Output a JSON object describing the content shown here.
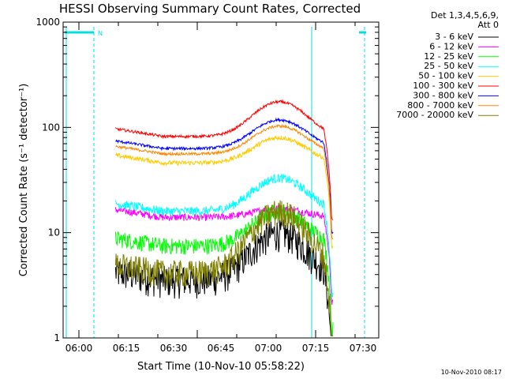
{
  "chart_data": {
    "type": "line",
    "title": "HESSI Observing Summary Count Rates, Corrected",
    "xlabel": "Start Time (10-Nov-10 05:58:22)",
    "ylabel": "Corrected Count Rate (s⁻¹ detector⁻¹)",
    "yscale": "log",
    "ylim": [
      1,
      1000
    ],
    "xlim_minutes": [
      -2,
      38
    ],
    "x_ticks": [
      {
        "label": "06:00",
        "m": 0
      },
      {
        "label": "06:15",
        "m": 15
      },
      {
        "label": "06:30",
        "m": 30
      },
      {
        "label": "06:45",
        "m": 45
      },
      {
        "label": "07:00",
        "m": 60
      },
      {
        "label": "07:15",
        "m": 75
      },
      {
        "label": "07:30",
        "m": 90
      }
    ],
    "y_ticks": [
      {
        "label": "1",
        "v": 1
      },
      {
        "label": "10",
        "v": 10
      },
      {
        "label": "100",
        "v": 100
      },
      {
        "label": "1000",
        "v": 1000
      }
    ],
    "legend_header": [
      "Det 1,3,4,5,6,9,",
      "Att 0"
    ],
    "legend_position": "right",
    "night_flag_label": "N",
    "series": [
      {
        "name": "3 - 6 keV",
        "color": "#000000",
        "base": 3.6,
        "peak": 10,
        "noise": 0.35
      },
      {
        "name": "6 - 12 keV",
        "color": "#ff00ff",
        "base": 14,
        "peak": 17,
        "noise": 0.08
      },
      {
        "name": "12 - 25 keV",
        "color": "#00ff00",
        "base": 7.5,
        "peak": 16,
        "noise": 0.18
      },
      {
        "name": "25 - 50 keV",
        "color": "#00ffff",
        "base": 16,
        "peak": 33,
        "noise": 0.1
      },
      {
        "name": "50 - 100 keV",
        "color": "#ffcc00",
        "base": 46,
        "peak": 80,
        "noise": 0.05
      },
      {
        "name": "100 - 300 keV",
        "color": "#ff0000",
        "base": 82,
        "peak": 175,
        "noise": 0.03
      },
      {
        "name": "300 - 800 keV",
        "color": "#0000ff",
        "base": 63,
        "peak": 118,
        "noise": 0.03
      },
      {
        "name": "800 - 7000 keV",
        "color": "#ff8800",
        "base": 56,
        "peak": 103,
        "noise": 0.03
      },
      {
        "name": "7000 - 20000 keV",
        "color": "#808000",
        "base": 4.2,
        "peak": 16,
        "noise": 0.3
      }
    ],
    "data_start_minute": 11.6,
    "data_end_minute": 80.5,
    "peak_minute": 63.5
  },
  "footer": {
    "timestamp": "10-Nov-2010 08:17"
  },
  "colors": {
    "night_flag": "#00e0e0"
  }
}
